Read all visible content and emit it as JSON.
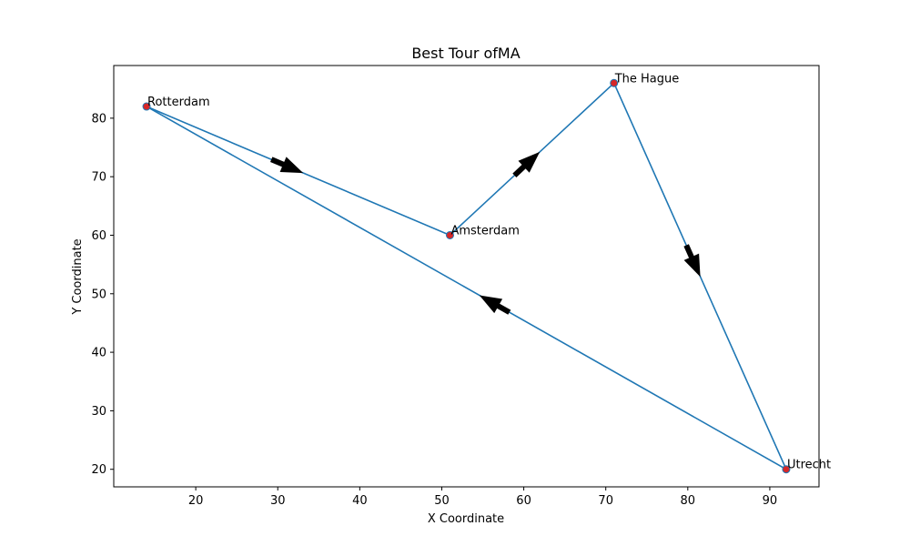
{
  "chart_data": {
    "type": "line",
    "title": "Best Tour ofMA",
    "xlabel": "X Coordinate",
    "ylabel": "Y Coordinate",
    "xlim": [
      10,
      96
    ],
    "ylim": [
      17,
      89
    ],
    "xticks": [
      20,
      30,
      40,
      50,
      60,
      70,
      80,
      90
    ],
    "yticks": [
      20,
      30,
      40,
      50,
      60,
      70,
      80
    ],
    "grid": false,
    "cities": [
      {
        "name": "Amsterdam",
        "x": 51,
        "y": 60
      },
      {
        "name": "Rotterdam",
        "x": 14,
        "y": 82
      },
      {
        "name": "The Hague",
        "x": 71,
        "y": 86
      },
      {
        "name": "Utrecht",
        "x": 92,
        "y": 20
      }
    ],
    "tour": [
      "Rotterdam",
      "Amsterdam",
      "The Hague",
      "Utrecht",
      "Rotterdam"
    ],
    "colors": {
      "line": "#1f77b4",
      "point_fill": "#d62728",
      "point_edge": "#1f77b4",
      "arrow": "#000000"
    }
  }
}
